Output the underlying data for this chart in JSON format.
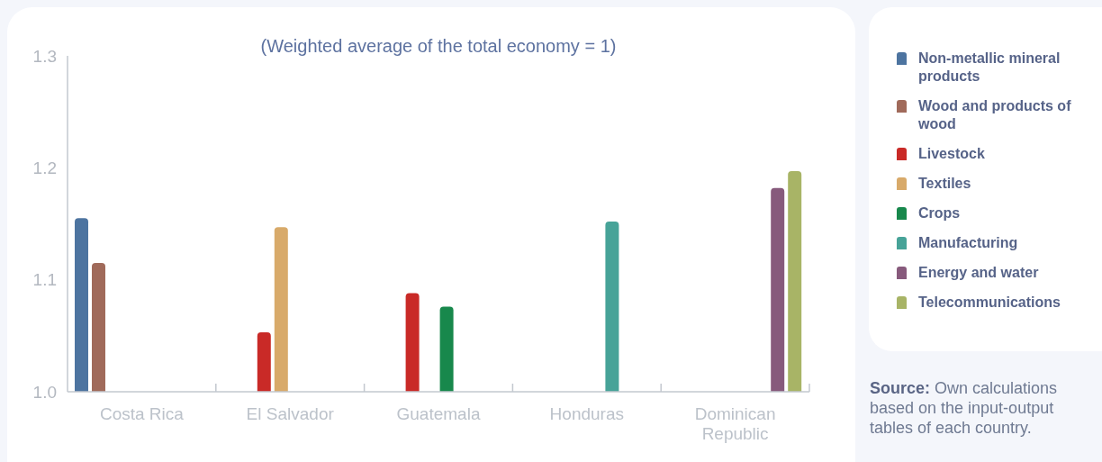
{
  "chart_data": {
    "type": "bar",
    "title": "(Weighted average of the total economy = 1)",
    "categories": [
      "Costa Rica",
      "El Salvador",
      "Guatemala",
      "Honduras",
      "Dominican Republic"
    ],
    "series": [
      {
        "name": "Non-metallic mineral products",
        "color": "#4d74a0",
        "values": [
          1.155,
          null,
          null,
          null,
          null
        ]
      },
      {
        "name": "Wood and products of wood",
        "color": "#a06a5a",
        "values": [
          1.115,
          null,
          null,
          null,
          null
        ]
      },
      {
        "name": "Livestock",
        "color": "#c92a27",
        "values": [
          null,
          1.053,
          1.088,
          null,
          null
        ]
      },
      {
        "name": "Textiles",
        "color": "#d8aa6a",
        "values": [
          null,
          1.147,
          null,
          null,
          null
        ]
      },
      {
        "name": "Crops",
        "color": "#18884c",
        "values": [
          null,
          null,
          1.076,
          null,
          null
        ]
      },
      {
        "name": "Manufacturing",
        "color": "#47a398",
        "values": [
          null,
          null,
          null,
          1.152,
          null
        ]
      },
      {
        "name": "Energy and water",
        "color": "#875a7c",
        "values": [
          null,
          null,
          null,
          null,
          1.182
        ]
      },
      {
        "name": "Telecommunications",
        "color": "#a8b466",
        "values": [
          null,
          null,
          null,
          null,
          1.197
        ]
      }
    ],
    "ylim": [
      1.0,
      1.3
    ],
    "yticks": [
      {
        "value": 1,
        "label": "1.0"
      },
      1.1,
      1.2,
      1.3
    ],
    "legend": "right",
    "annotations": [
      "Source: Own calculations based on the input-output tables of each country."
    ]
  }
}
